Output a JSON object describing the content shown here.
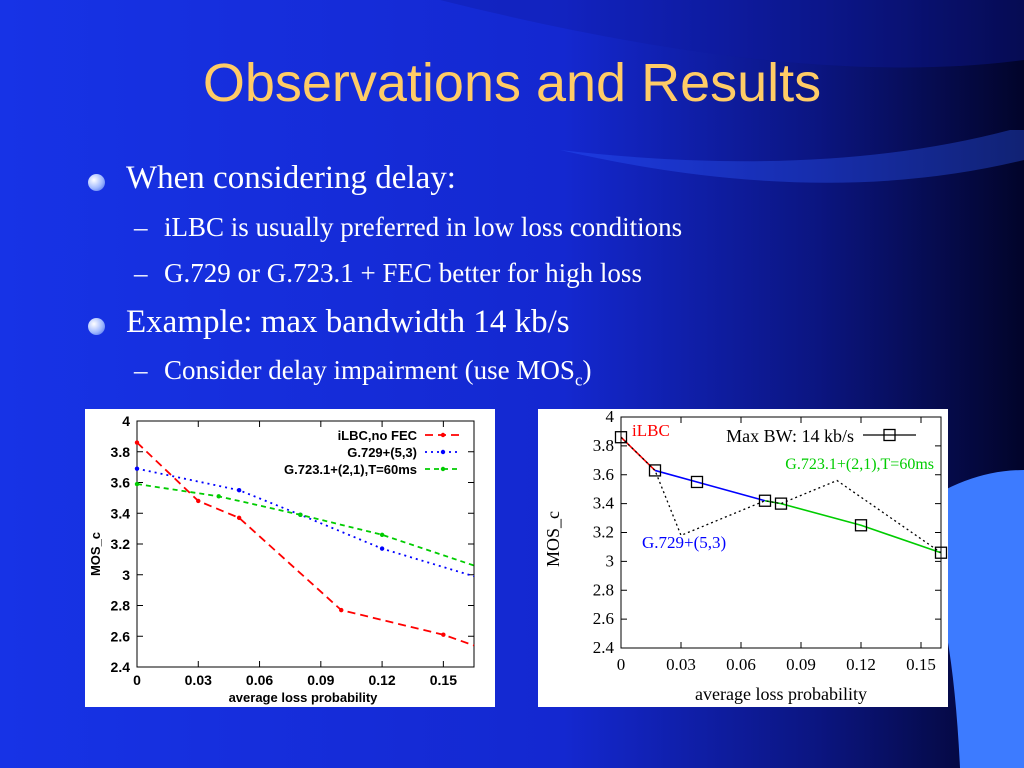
{
  "slide": {
    "title": "Observations and Results",
    "colors": {
      "title": "#ffcc66",
      "text": "#ffffff",
      "background": "#1a2ee8"
    },
    "bullets": [
      {
        "text": "When considering delay:",
        "sub": [
          "iLBC is usually preferred in low loss conditions",
          "G.729 or G.723.1 + FEC better for high loss"
        ]
      },
      {
        "text": "Example: max bandwidth 14 kb/s",
        "sub_main": "Consider delay impairment (use MOS",
        "sub_subscript": "c",
        "sub_close": ")"
      }
    ],
    "dash": "–"
  },
  "chart_data": [
    {
      "type": "line",
      "xlabel": "average loss probability",
      "ylabel": "MOS_c",
      "xlim": [
        0,
        0.165
      ],
      "ylim": [
        2.4,
        4
      ],
      "xticks": [
        "0",
        "0.03",
        "0.06",
        "0.09",
        "0.12",
        "0.15"
      ],
      "yticks": [
        "2.4",
        "2.6",
        "2.8",
        "3",
        "3.2",
        "3.4",
        "3.6",
        "3.8",
        "4"
      ],
      "legend_position": "top-right",
      "series": [
        {
          "name": "iLBC,no FEC",
          "color": "#ff0000",
          "dash": "8,5",
          "x": [
            0,
            0.03,
            0.05,
            0.1,
            0.15,
            0.165
          ],
          "y": [
            3.86,
            3.48,
            3.37,
            2.77,
            2.61,
            2.54
          ]
        },
        {
          "name": "G.729+(5,3)",
          "color": "#0000ff",
          "dash": "2,4",
          "x": [
            0,
            0.05,
            0.08,
            0.12,
            0.165
          ],
          "y": [
            3.69,
            3.55,
            3.39,
            3.17,
            2.99
          ]
        },
        {
          "name": "G.723.1+(2,1),T=60ms",
          "color": "#00cc00",
          "dash": "5,4",
          "x": [
            0,
            0.04,
            0.08,
            0.12,
            0.165
          ],
          "y": [
            3.59,
            3.51,
            3.39,
            3.26,
            3.06
          ]
        }
      ]
    },
    {
      "type": "line",
      "xlabel": "average loss probability",
      "ylabel": "MOS_c",
      "xlim": [
        0,
        0.16
      ],
      "ylim": [
        2.4,
        4
      ],
      "xticks": [
        "0",
        "0.03",
        "0.06",
        "0.09",
        "0.12",
        "0.15"
      ],
      "yticks": [
        "2.4",
        "2.6",
        "2.8",
        "3",
        "3.2",
        "3.4",
        "3.6",
        "3.8",
        "4"
      ],
      "legend_title": "Max BW: 14 kb/s",
      "annotations": [
        {
          "text": "iLBC",
          "color": "#ff0000"
        },
        {
          "text": "G.723.1+(2,1),T=60ms",
          "color": "#00cc00"
        },
        {
          "text": "G.729+(5,3)",
          "color": "#0000ff"
        }
      ],
      "series": [
        {
          "name": "iLBC",
          "color": "#ff0000",
          "x": [
            0,
            0.017
          ],
          "y": [
            3.86,
            3.63
          ]
        },
        {
          "name": "G.729+(5,3)",
          "color": "#0000ff",
          "x": [
            0.017,
            0.038,
            0.072
          ],
          "y": [
            3.63,
            3.55,
            3.42
          ]
        },
        {
          "name": "G.723.1+(2,1),T=60ms",
          "color": "#00cc00",
          "x": [
            0.072,
            0.08,
            0.12,
            0.16
          ],
          "y": [
            3.42,
            3.4,
            3.25,
            3.06
          ]
        },
        {
          "name": "Max BW: 14 kb/s",
          "color": "#000000",
          "dotted": true,
          "x": [
            0,
            0.017,
            0.03,
            0.072,
            0.08,
            0.108,
            0.16
          ],
          "y": [
            3.86,
            3.63,
            3.18,
            3.42,
            3.4,
            3.56,
            3.06
          ]
        },
        {
          "name": "markers",
          "marker": "square",
          "x": [
            0,
            0.017,
            0.038,
            0.072,
            0.08,
            0.12,
            0.16
          ],
          "y": [
            3.86,
            3.63,
            3.55,
            3.42,
            3.4,
            3.25,
            3.06
          ]
        }
      ]
    }
  ]
}
